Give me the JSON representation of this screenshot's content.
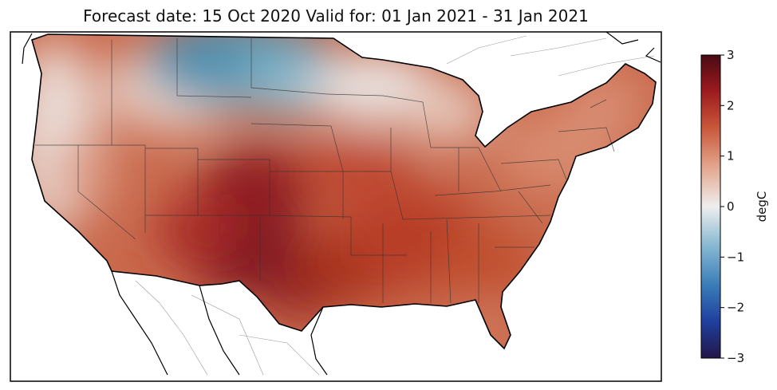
{
  "title": "Forecast date: 15 Oct 2020   Valid for: 01 Jan 2021 - 31 Jan 2021",
  "colorbar": {
    "label": "degC",
    "range": [
      -3,
      3
    ],
    "ticks": [
      "3",
      "2",
      "1",
      "0",
      "−1",
      "−2",
      "−3"
    ],
    "colormap": [
      "#2a1a66",
      "#1f4fbf",
      "#3f88b4",
      "#8ebfd6",
      "#eeeeee",
      "#e8a58c",
      "#cc5a3c",
      "#a11c1c",
      "#4d0a12"
    ]
  },
  "map": {
    "region": "Continental United States",
    "field": "temperature anomaly"
  }
}
